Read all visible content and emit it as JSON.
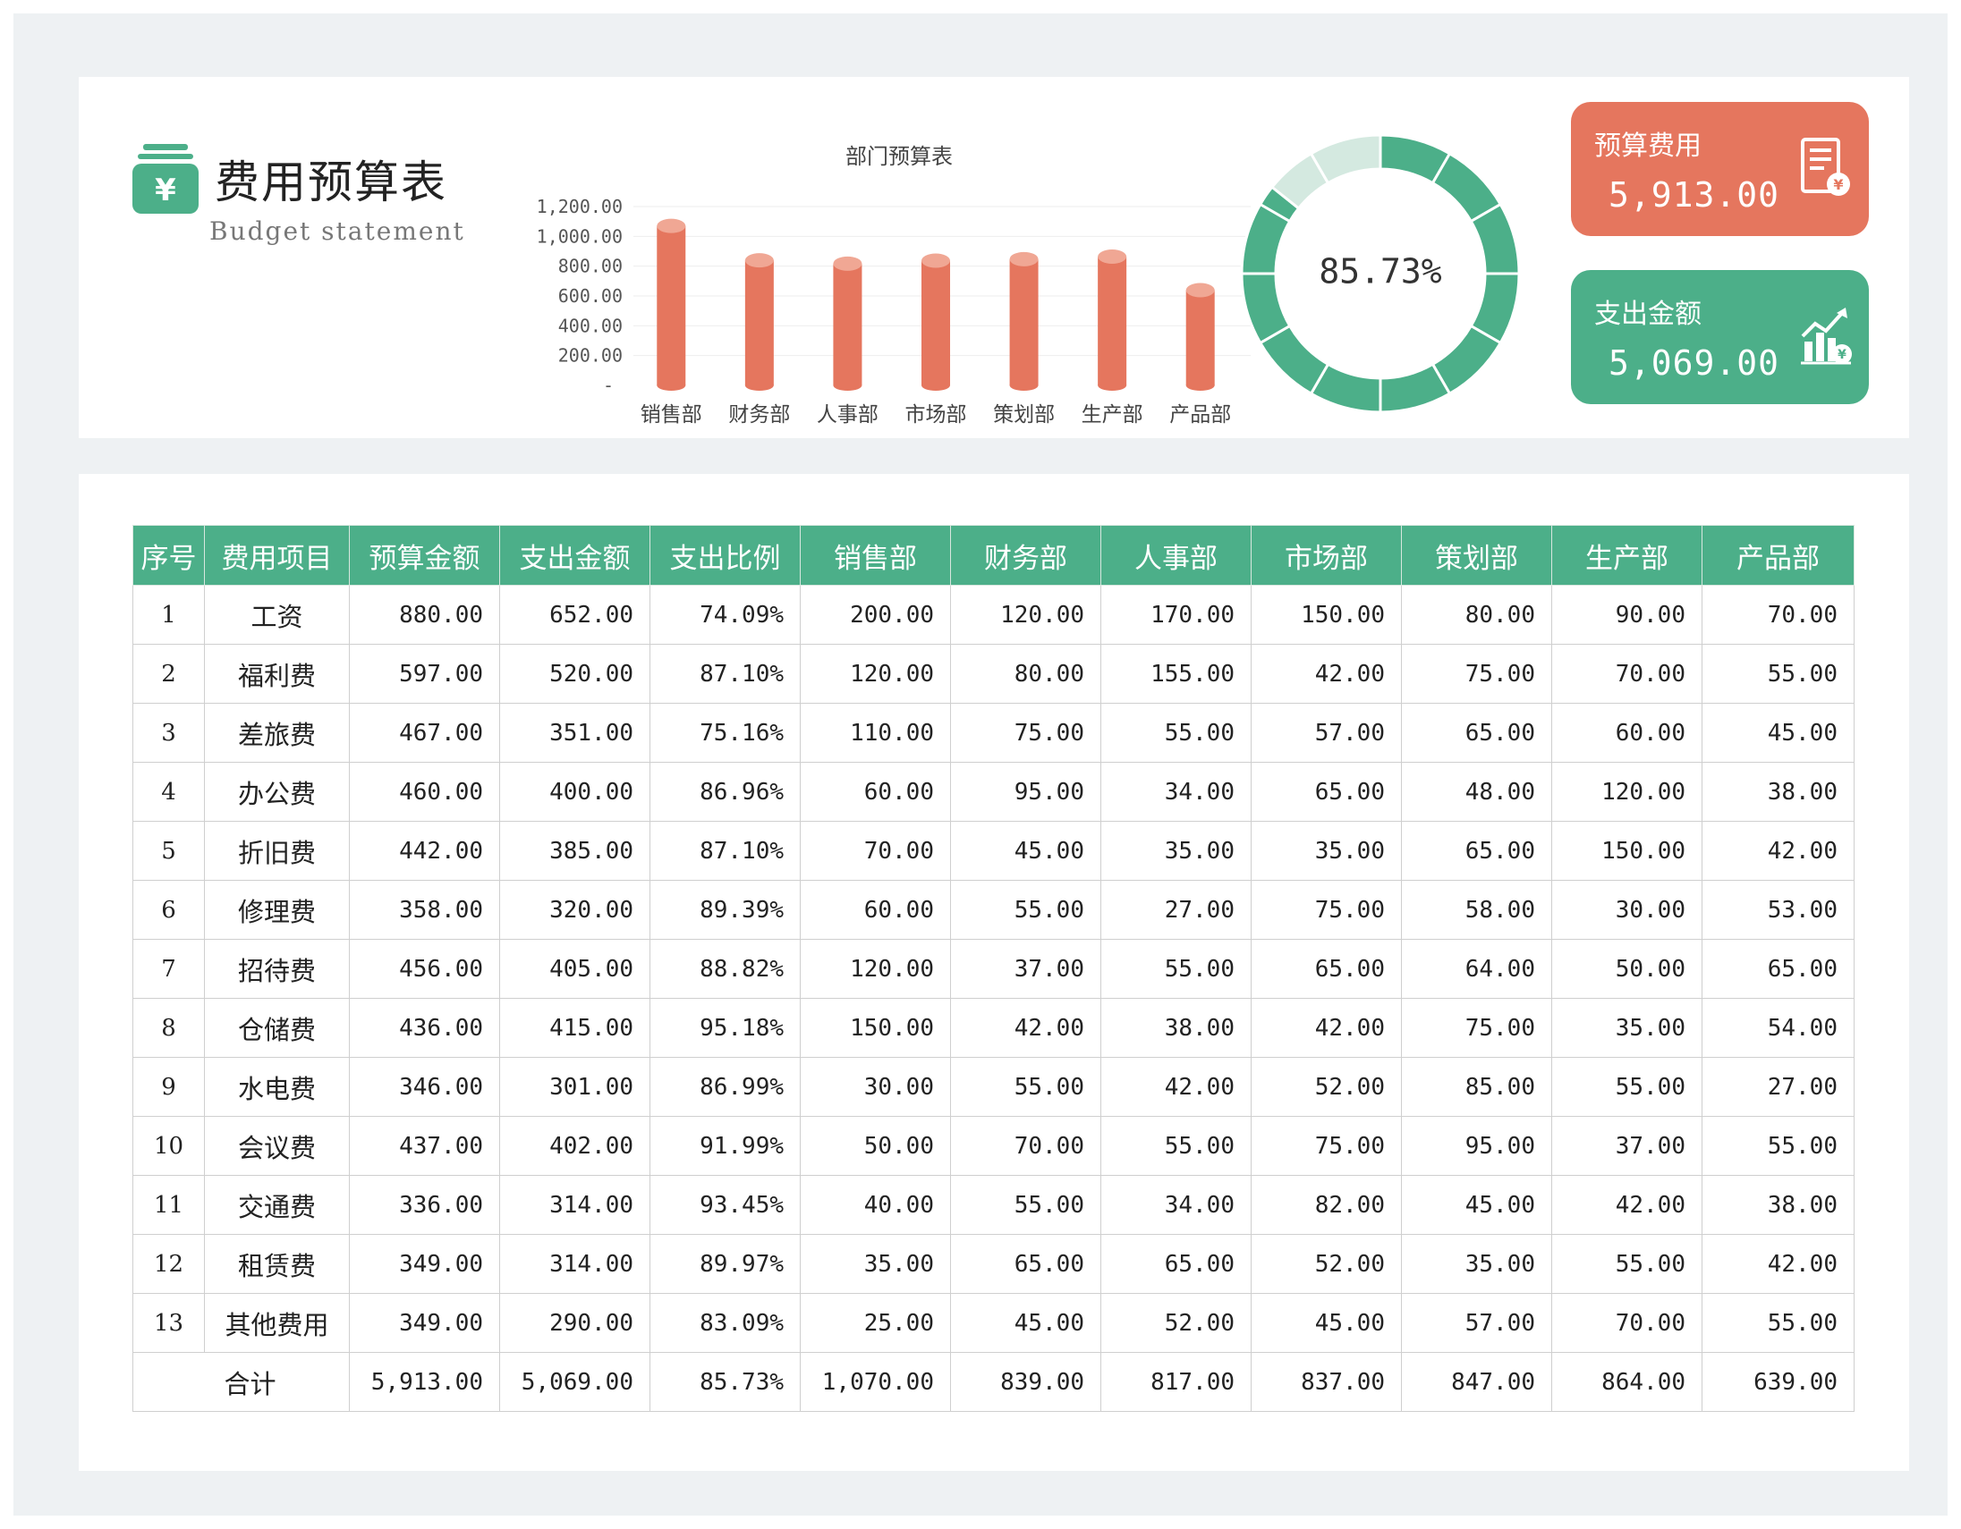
{
  "header": {
    "title": "费用预算表",
    "subtitle": "Budget statement"
  },
  "chart_data": [
    {
      "type": "bar",
      "title": "部门预算表",
      "categories": [
        "销售部",
        "财务部",
        "人事部",
        "市场部",
        "策划部",
        "生产部",
        "产品部"
      ],
      "values": [
        1070,
        839,
        817,
        837,
        847,
        864,
        639
      ],
      "ylim": [
        0,
        1200
      ],
      "yticks": [
        "-",
        "200.00",
        "400.00",
        "600.00",
        "800.00",
        "1,000.00",
        "1,200.00"
      ],
      "grid": true,
      "color": "#e5765e"
    },
    {
      "type": "pie",
      "variant": "donut",
      "center_label": "85.73%",
      "value": 0.8573,
      "segments": 12,
      "color": "#4caf89",
      "rest_color": "#d4e9e0"
    }
  ],
  "kpi": {
    "budget": {
      "label": "预算费用",
      "value": "5,913.00",
      "color": "#e5765e"
    },
    "expense": {
      "label": "支出金额",
      "value": "5,069.00",
      "color": "#4caf89"
    }
  },
  "table": {
    "headers": [
      "序号",
      "费用项目",
      "预算金额",
      "支出金额",
      "支出比例",
      "销售部",
      "财务部",
      "人事部",
      "市场部",
      "策划部",
      "生产部",
      "产品部"
    ],
    "rows": [
      [
        "1",
        "工资",
        "880.00",
        "652.00",
        "74.09%",
        "200.00",
        "120.00",
        "170.00",
        "150.00",
        "80.00",
        "90.00",
        "70.00"
      ],
      [
        "2",
        "福利费",
        "597.00",
        "520.00",
        "87.10%",
        "120.00",
        "80.00",
        "155.00",
        "42.00",
        "75.00",
        "70.00",
        "55.00"
      ],
      [
        "3",
        "差旅费",
        "467.00",
        "351.00",
        "75.16%",
        "110.00",
        "75.00",
        "55.00",
        "57.00",
        "65.00",
        "60.00",
        "45.00"
      ],
      [
        "4",
        "办公费",
        "460.00",
        "400.00",
        "86.96%",
        "60.00",
        "95.00",
        "34.00",
        "65.00",
        "48.00",
        "120.00",
        "38.00"
      ],
      [
        "5",
        "折旧费",
        "442.00",
        "385.00",
        "87.10%",
        "70.00",
        "45.00",
        "35.00",
        "35.00",
        "65.00",
        "150.00",
        "42.00"
      ],
      [
        "6",
        "修理费",
        "358.00",
        "320.00",
        "89.39%",
        "60.00",
        "55.00",
        "27.00",
        "75.00",
        "58.00",
        "30.00",
        "53.00"
      ],
      [
        "7",
        "招待费",
        "456.00",
        "405.00",
        "88.82%",
        "120.00",
        "37.00",
        "55.00",
        "65.00",
        "64.00",
        "50.00",
        "65.00"
      ],
      [
        "8",
        "仓储费",
        "436.00",
        "415.00",
        "95.18%",
        "150.00",
        "42.00",
        "38.00",
        "42.00",
        "75.00",
        "35.00",
        "54.00"
      ],
      [
        "9",
        "水电费",
        "346.00",
        "301.00",
        "86.99%",
        "30.00",
        "55.00",
        "42.00",
        "52.00",
        "85.00",
        "55.00",
        "27.00"
      ],
      [
        "10",
        "会议费",
        "437.00",
        "402.00",
        "91.99%",
        "50.00",
        "70.00",
        "55.00",
        "75.00",
        "95.00",
        "37.00",
        "55.00"
      ],
      [
        "11",
        "交通费",
        "336.00",
        "314.00",
        "93.45%",
        "40.00",
        "55.00",
        "34.00",
        "82.00",
        "45.00",
        "42.00",
        "38.00"
      ],
      [
        "12",
        "租赁费",
        "349.00",
        "314.00",
        "89.97%",
        "35.00",
        "65.00",
        "65.00",
        "52.00",
        "35.00",
        "55.00",
        "42.00"
      ],
      [
        "13",
        "其他费用",
        "349.00",
        "290.00",
        "83.09%",
        "25.00",
        "45.00",
        "52.00",
        "45.00",
        "57.00",
        "70.00",
        "55.00"
      ]
    ],
    "total": [
      "合计",
      "5,913.00",
      "5,069.00",
      "85.73%",
      "1,070.00",
      "839.00",
      "817.00",
      "837.00",
      "847.00",
      "864.00",
      "639.00"
    ]
  }
}
